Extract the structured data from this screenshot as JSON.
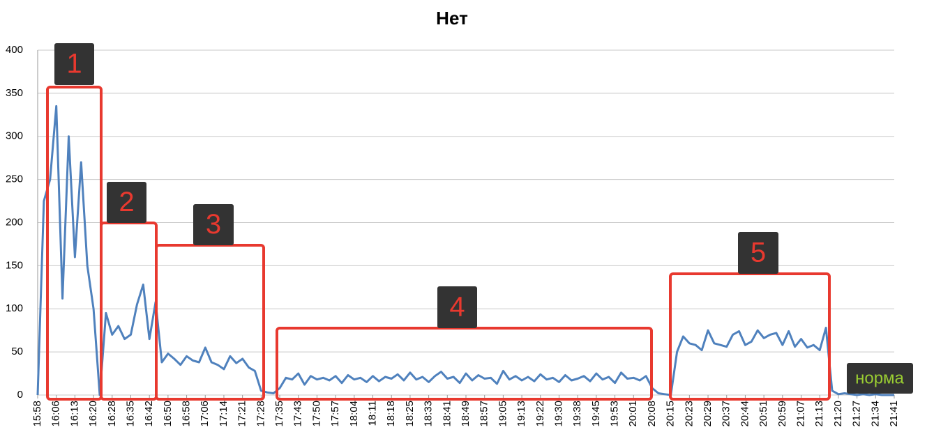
{
  "chart_data": {
    "type": "line",
    "title": "Нет",
    "color": "#4f81bd",
    "categories": [
      "15:58",
      null,
      null,
      "16:06",
      null,
      null,
      "16:13",
      null,
      null,
      "16:20",
      null,
      null,
      "16:28",
      null,
      null,
      "16:35",
      null,
      null,
      "16:42",
      null,
      null,
      "16:50",
      null,
      null,
      "16:58",
      null,
      null,
      "17:06",
      null,
      null,
      "17:14",
      null,
      null,
      "17:21",
      null,
      null,
      "17:28",
      null,
      null,
      "17:35",
      null,
      null,
      "17:43",
      null,
      null,
      "17:50",
      null,
      null,
      "17:57",
      null,
      null,
      "18:04",
      null,
      null,
      "18:11",
      null,
      null,
      "18:18",
      null,
      null,
      "18:25",
      null,
      null,
      "18:33",
      null,
      null,
      "18:41",
      null,
      null,
      "18:49",
      null,
      null,
      "18:57",
      null,
      null,
      "19:05",
      null,
      null,
      "19:13",
      null,
      null,
      "19:22",
      null,
      null,
      "19:30",
      null,
      null,
      "19:38",
      null,
      null,
      "19:45",
      null,
      null,
      "19:53",
      null,
      null,
      "20:01",
      null,
      null,
      "20:08",
      null,
      null,
      "20:15",
      null,
      null,
      "20:23",
      null,
      null,
      "20:29",
      null,
      null,
      "20:37",
      null,
      null,
      "20:44",
      null,
      null,
      "20:51",
      null,
      null,
      "20:59",
      null,
      null,
      "21:07",
      null,
      null,
      "21:13",
      null,
      null,
      "21:20",
      null,
      null,
      "21:27",
      null,
      null,
      "21:34",
      null,
      null,
      "21:41"
    ],
    "values": [
      0,
      225,
      250,
      335,
      112,
      300,
      160,
      270,
      150,
      100,
      0,
      95,
      70,
      80,
      65,
      70,
      105,
      128,
      65,
      108,
      38,
      48,
      42,
      35,
      45,
      40,
      38,
      55,
      38,
      35,
      30,
      45,
      37,
      42,
      32,
      28,
      5,
      3,
      2,
      8,
      20,
      18,
      25,
      12,
      22,
      18,
      20,
      17,
      22,
      14,
      23,
      18,
      20,
      15,
      22,
      16,
      21,
      19,
      24,
      17,
      26,
      18,
      21,
      15,
      22,
      27,
      19,
      21,
      14,
      25,
      17,
      23,
      19,
      20,
      13,
      28,
      18,
      22,
      17,
      21,
      16,
      24,
      18,
      20,
      15,
      23,
      17,
      19,
      22,
      16,
      25,
      18,
      21,
      14,
      26,
      19,
      20,
      17,
      22,
      8,
      2,
      1,
      0,
      50,
      68,
      60,
      58,
      52,
      75,
      60,
      58,
      56,
      70,
      74,
      58,
      62,
      75,
      66,
      70,
      72,
      58,
      74,
      56,
      65,
      55,
      58,
      52,
      78,
      5,
      1,
      2,
      1,
      0,
      1,
      0,
      1,
      0,
      0,
      0
    ],
    "ylim": [
      0,
      400
    ],
    "yticks": [
      0,
      50,
      100,
      150,
      200,
      250,
      300,
      350,
      400
    ],
    "grid": true,
    "annotations": [
      "1",
      "2",
      "3",
      "4",
      "5",
      "норма"
    ]
  }
}
